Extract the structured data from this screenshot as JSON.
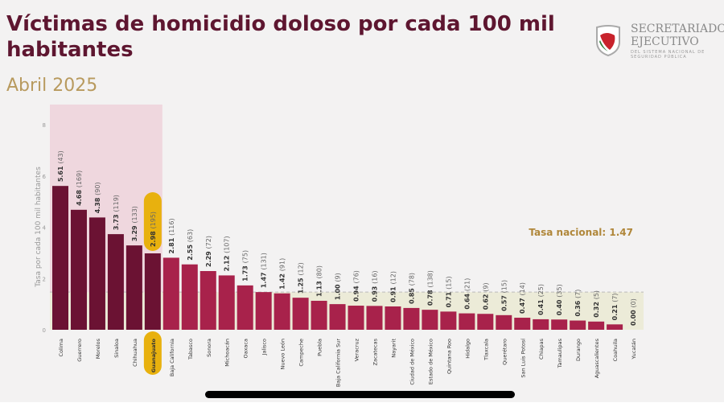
{
  "header": {
    "title": "Víctimas de homicidio doloso por cada 100 mil habitantes",
    "subtitle": "Abril 2025"
  },
  "logo": {
    "line1": "SECRETARIADO",
    "line2": "EJECUTIVO",
    "line3": "DEL SISTEMA NACIONAL DE SEGURIDAD PÚBLICA"
  },
  "chart_data": {
    "type": "bar",
    "title": "Víctimas de homicidio doloso por cada 100 mil habitantes",
    "ylabel": "Tasa por cada 100 mil habitantes",
    "xlabel": "",
    "ylim": [
      0,
      8
    ],
    "yticks": [
      0,
      2,
      4,
      6,
      8
    ],
    "categories": [
      "Colima",
      "Guerrero",
      "Morelos",
      "Sinaloa",
      "Chihuahua",
      "Guanajuato",
      "Baja California",
      "Tabasco",
      "Sonora",
      "Michoacán",
      "Oaxaca",
      "Jalisco",
      "Nuevo León",
      "Campeche",
      "Puebla",
      "Baja California Sur",
      "Veracruz",
      "Zacatecas",
      "Nayarit",
      "Ciudad de México",
      "Estado de México",
      "Quintana Roo",
      "Hidalgo",
      "Tlaxcala",
      "Querétaro",
      "San Luis Potosí",
      "Chiapas",
      "Tamaulipas",
      "Durango",
      "Aguascalientes",
      "Coahuila",
      "Yucatán"
    ],
    "values": [
      5.61,
      4.68,
      4.38,
      3.73,
      3.29,
      2.98,
      2.81,
      2.55,
      2.29,
      2.12,
      1.73,
      1.47,
      1.42,
      1.25,
      1.13,
      1.0,
      0.94,
      0.93,
      0.91,
      0.85,
      0.78,
      0.71,
      0.64,
      0.62,
      0.57,
      0.47,
      0.41,
      0.4,
      0.36,
      0.32,
      0.21,
      0.0
    ],
    "victims": [
      43,
      169,
      90,
      119,
      133,
      195,
      116,
      63,
      72,
      107,
      75,
      131,
      91,
      12,
      80,
      9,
      76,
      16,
      12,
      78,
      138,
      15,
      21,
      9,
      15,
      14,
      25,
      35,
      7,
      5,
      7,
      0
    ],
    "value_labels": [
      "5.61",
      "4.68",
      "4.38",
      "3.73",
      "3.29",
      "2.98",
      "2.81",
      "2.55",
      "2.29",
      "2.12",
      "1.73",
      "1.47",
      "1.42",
      "1.25",
      "1.13",
      "1.00",
      "0.94",
      "0.93",
      "0.91",
      "0.85",
      "0.78",
      "0.71",
      "0.64",
      "0.62",
      "0.57",
      "0.47",
      "0.41",
      "0.40",
      "0.36",
      "0.32",
      "0.21",
      "0.00"
    ],
    "victim_labels": [
      "(43)",
      "(169)",
      "(90)",
      "(119)",
      "(133)",
      "(195)",
      "(116)",
      "(63)",
      "(72)",
      "(107)",
      "(75)",
      "(131)",
      "(91)",
      "(12)",
      "(80)",
      "(9)",
      "(76)",
      "(16)",
      "(12)",
      "(78)",
      "(138)",
      "(15)",
      "(21)",
      "(9)",
      "(15)",
      "(14)",
      "(25)",
      "(35)",
      "(7)",
      "(5)",
      "(7)",
      "(0)"
    ],
    "highlight_top_count": 6,
    "highlighted_state": "Guanajuato",
    "national_rate": 1.47,
    "annotation": "Tasa nacional: 1.47",
    "colors": {
      "top": "#6b1233",
      "rest": "#a8224b",
      "highlight_bg": "#efd7de",
      "national_band": "#ecebd8",
      "pill": "#e8b10e",
      "annotation": "#b0873a"
    },
    "grid": false
  }
}
